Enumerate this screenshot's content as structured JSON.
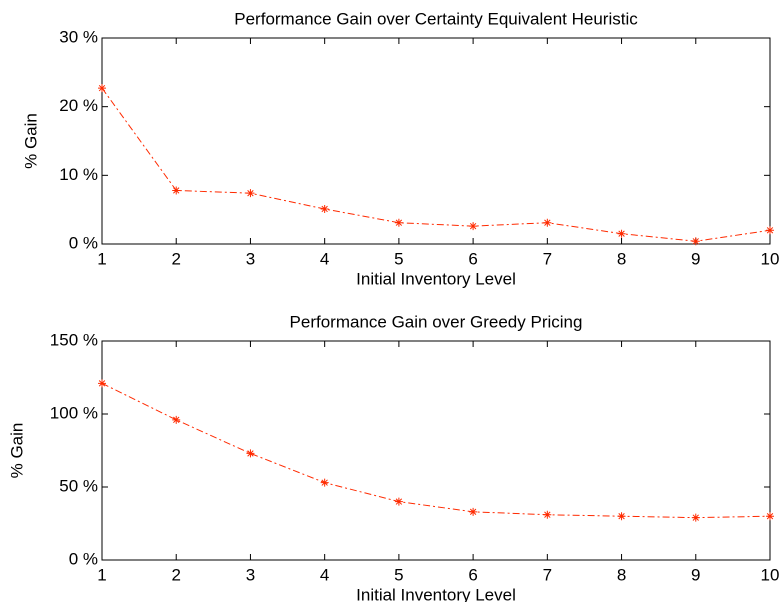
{
  "chart_data": [
    {
      "type": "line",
      "title": "Performance Gain over Certainty Equivalent Heuristic",
      "x_label": "Initial Inventory Level",
      "y_label": "% Gain",
      "x": [
        1,
        2,
        3,
        4,
        5,
        6,
        7,
        8,
        9,
        10
      ],
      "series": [
        {
          "color": "#ff2a00",
          "values": [
            22.7,
            7.8,
            7.4,
            5.1,
            3.1,
            2.6,
            3.1,
            1.5,
            0.4,
            2.0
          ]
        }
      ],
      "xlim": [
        1,
        10
      ],
      "xticks": [
        1,
        2,
        3,
        4,
        5,
        6,
        7,
        8,
        9,
        10
      ],
      "ylim": [
        0,
        30
      ],
      "yticks": [
        {
          "value": 0,
          "label": "0 %"
        },
        {
          "value": 10,
          "label": "10 %"
        },
        {
          "value": 20,
          "label": "20 %"
        },
        {
          "value": 30,
          "label": "30 %"
        }
      ]
    },
    {
      "type": "line",
      "title": "Performance Gain over Greedy Pricing",
      "x_label": "Initial Inventory Level",
      "y_label": "% Gain",
      "x": [
        1,
        2,
        3,
        4,
        5,
        6,
        7,
        8,
        9,
        10
      ],
      "series": [
        {
          "color": "#ff2a00",
          "values": [
            121,
            96,
            73,
            53,
            40,
            33,
            31,
            30,
            29,
            30
          ]
        }
      ],
      "xlim": [
        1,
        10
      ],
      "xticks": [
        1,
        2,
        3,
        4,
        5,
        6,
        7,
        8,
        9,
        10
      ],
      "ylim": [
        0,
        150
      ],
      "yticks": [
        {
          "value": 0,
          "label": "0 %"
        },
        {
          "value": 50,
          "label": "50 %"
        },
        {
          "value": 100,
          "label": "100 %"
        },
        {
          "value": 150,
          "label": "150 %"
        }
      ]
    }
  ]
}
